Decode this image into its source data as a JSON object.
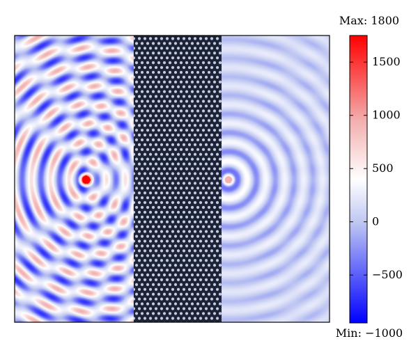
{
  "chart_data": {
    "type": "heatmap",
    "title": "",
    "xlabel": "",
    "ylabel": "",
    "grid": false,
    "colormap": {
      "name": "blue-white-red",
      "low_color": "#0000ff",
      "mid_color": "#ffffff",
      "high_color": "#ff0000"
    },
    "colorbar": {
      "orientation": "vertical",
      "placement": "right",
      "range": [
        -1000,
        1800
      ],
      "visible_range": [
        -950,
        1750
      ],
      "ticks": [
        {
          "value": 1500,
          "label": "1500"
        },
        {
          "value": 1000,
          "label": "1000"
        },
        {
          "value": 500,
          "label": "500"
        },
        {
          "value": 0,
          "label": "0"
        },
        {
          "value": -500,
          "label": "−500"
        }
      ],
      "max_label": "Max: 1800",
      "min_label": "Min: −1000"
    },
    "field": {
      "domain_x": [
        0,
        1
      ],
      "domain_y": [
        0,
        1
      ],
      "background_value": 0,
      "sources": [
        {
          "name": "source",
          "x": 0.226,
          "y": 0.502,
          "peak_value": 1750
        },
        {
          "name": "focus",
          "x": 0.678,
          "y": 0.502,
          "peak_value": 900
        }
      ],
      "crystal_slab": {
        "x_range": [
          0.378,
          0.657
        ],
        "color": "#1c2336",
        "hole_color": "#c4cbe0",
        "lattice": "triangular"
      }
    }
  }
}
